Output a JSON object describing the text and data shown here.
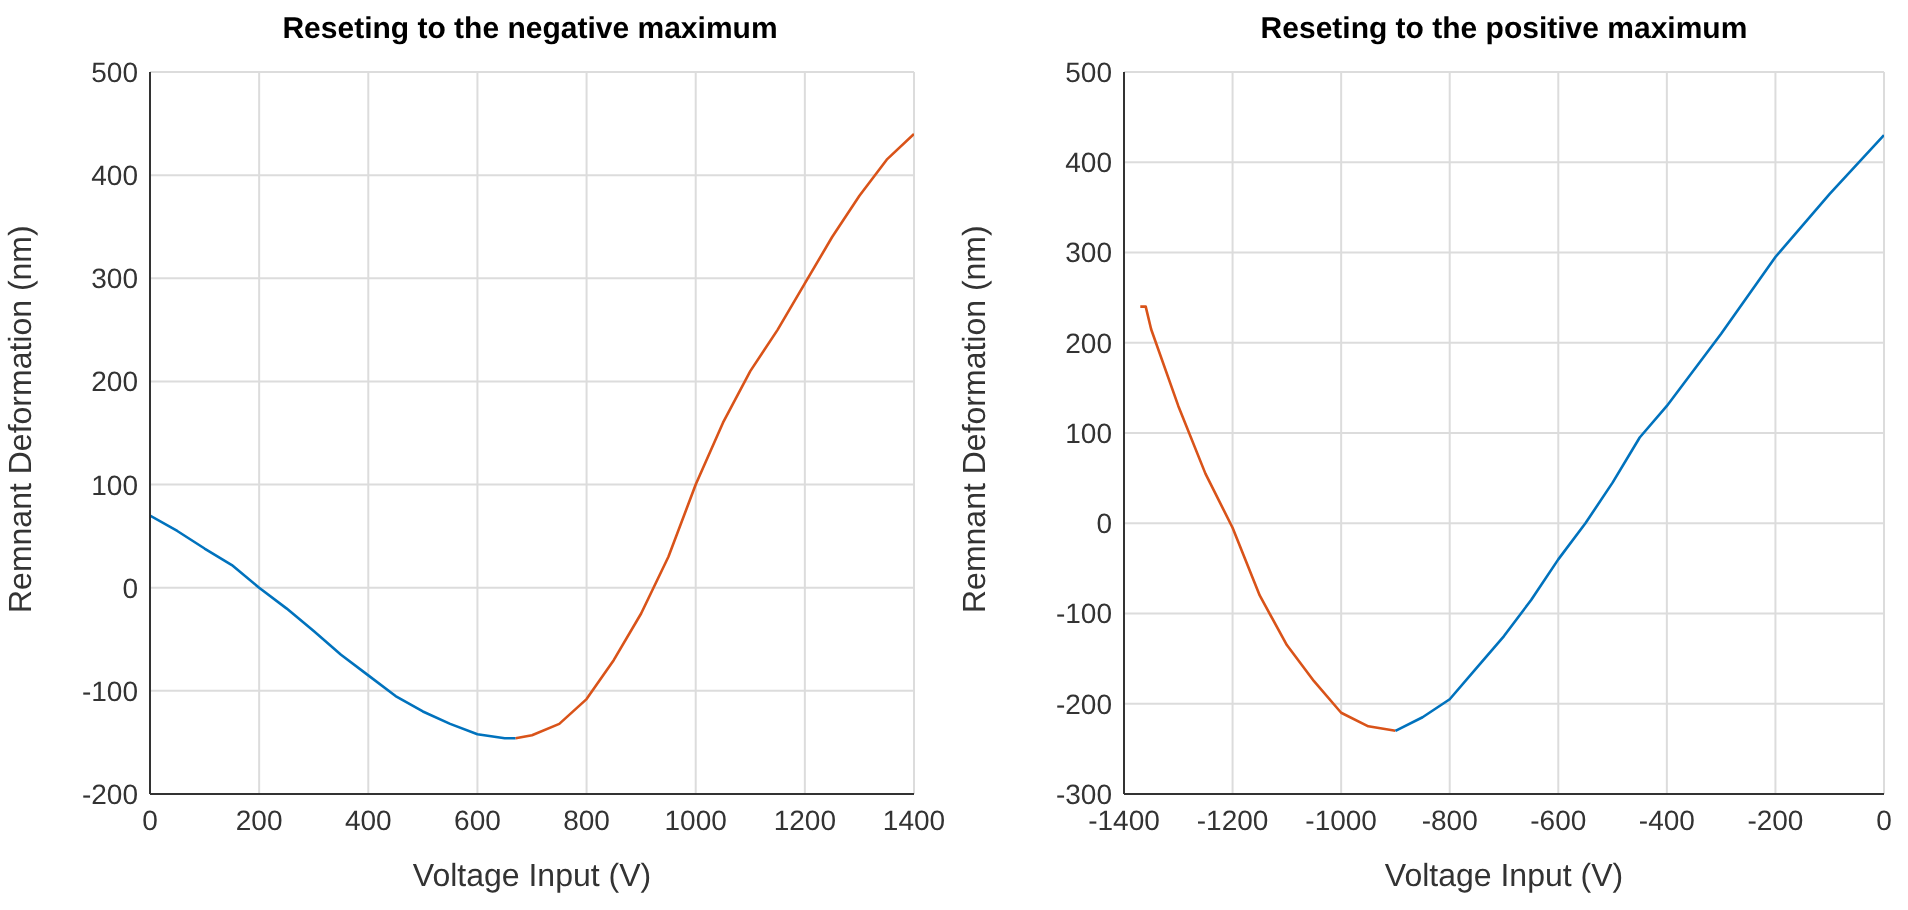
{
  "chart_data": [
    {
      "type": "line",
      "title": "Reseting to the negative maximum",
      "xlabel": "Voltage Input (V)",
      "ylabel": "Remnant Deformation (nm)",
      "xlim": [
        0,
        1400
      ],
      "xticks": [
        0,
        200,
        400,
        600,
        800,
        1000,
        1200,
        1400
      ],
      "ylim": [
        -200,
        500
      ],
      "yticks": [
        -200,
        -100,
        0,
        100,
        200,
        300,
        400,
        500
      ],
      "grid": true,
      "marker": "none",
      "line_style": "solid",
      "series": [
        {
          "color": "#0072bd",
          "x": [
            0,
            50,
            100,
            150,
            200,
            250,
            300,
            350,
            400,
            450,
            500,
            550,
            600,
            650,
            670
          ],
          "values": [
            70,
            55,
            38,
            22,
            0,
            -20,
            -42,
            -65,
            -85,
            -105,
            -120,
            -132,
            -142,
            -146,
            -146
          ]
        },
        {
          "color": "#d95319",
          "x": [
            670,
            700,
            750,
            800,
            850,
            900,
            950,
            1000,
            1050,
            1100,
            1150,
            1200,
            1250,
            1300,
            1350,
            1400
          ],
          "values": [
            -146,
            -143,
            -132,
            -108,
            -70,
            -25,
            30,
            100,
            160,
            210,
            250,
            295,
            340,
            380,
            415,
            440
          ]
        }
      ]
    },
    {
      "type": "line",
      "title": "Reseting to the positive maximum",
      "xlabel": "Voltage Input (V)",
      "ylabel": "Remnant Deformation (nm)",
      "xlim": [
        -1400,
        0
      ],
      "xticks": [
        -1400,
        -1200,
        -1000,
        -800,
        -600,
        -400,
        -200,
        0
      ],
      "ylim": [
        -300,
        500
      ],
      "yticks": [
        -300,
        -200,
        -100,
        0,
        100,
        200,
        300,
        400,
        500
      ],
      "grid": true,
      "marker": "none",
      "line_style": "solid",
      "series": [
        {
          "color": "#d95319",
          "x": [
            -1370,
            -1360,
            -1350,
            -1300,
            -1250,
            -1200,
            -1150,
            -1100,
            -1050,
            -1000,
            -950,
            -900
          ],
          "values": [
            240,
            240,
            215,
            130,
            55,
            -5,
            -80,
            -135,
            -175,
            -210,
            -225,
            -230
          ]
        },
        {
          "color": "#0072bd",
          "x": [
            -900,
            -850,
            -800,
            -750,
            -700,
            -650,
            -600,
            -550,
            -500,
            -450,
            -400,
            -300,
            -200,
            -100,
            0
          ],
          "values": [
            -230,
            -215,
            -195,
            -160,
            -125,
            -85,
            -40,
            0,
            45,
            95,
            130,
            210,
            295,
            365,
            430
          ]
        }
      ]
    }
  ]
}
